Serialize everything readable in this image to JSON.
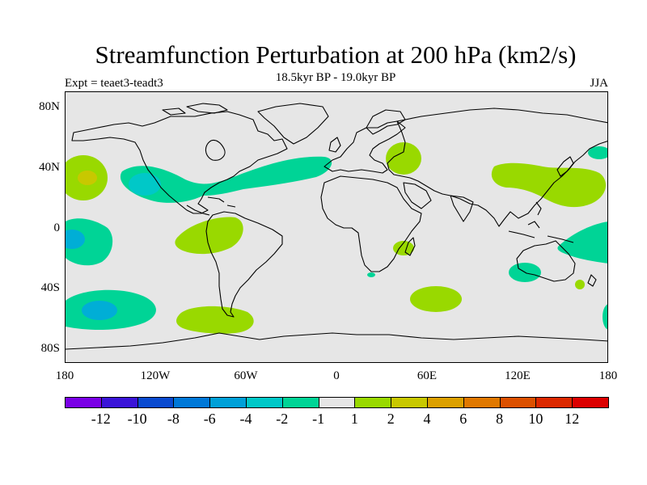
{
  "title": "Streamfunction Perturbation at 200 hPa (km2/s)",
  "subtitle": "18.5kyr BP - 19.0kyr BP",
  "experiment": "Expt = teaet3-teadt3",
  "season": "JJA",
  "colors": {
    "land_bg": "#e6e6e6",
    "coast": "#000000",
    "pos_1_2": "#99d900",
    "pos_2_4": "#c8c800",
    "neg_1_2": "#00d496",
    "neg_2_4": "#00c8c8",
    "neg_4_6": "#00aed6"
  },
  "lat_labels": [
    "80N",
    "40N",
    "0",
    "40S",
    "80S"
  ],
  "lon_labels": [
    "180",
    "120W",
    "60W",
    "0",
    "60E",
    "120E",
    "180"
  ],
  "colorbar": {
    "colors": [
      "#7a00e6",
      "#3a14d8",
      "#0a4ad0",
      "#0078d8",
      "#00a0d8",
      "#00c8c8",
      "#00d496",
      "#e6e6e6",
      "#99d900",
      "#c8c800",
      "#dca000",
      "#e07800",
      "#dc5000",
      "#dc2800",
      "#dc0000"
    ],
    "labels": [
      "-12",
      "-10",
      "-8",
      "-6",
      "-4",
      "-2",
      "-1",
      "1",
      "2",
      "4",
      "6",
      "8",
      "10",
      "12"
    ]
  },
  "anomalies": [
    {
      "name": "n-pacific-positive",
      "level": "pos_1_2",
      "lon": -177,
      "lat": 32
    },
    {
      "name": "n-pacific-positive-core",
      "level": "pos_2_4",
      "lon": -175,
      "lat": 33
    },
    {
      "name": "ne-pacific-america-atlantic-negative",
      "level": "neg_1_2",
      "lon": -80,
      "lat": 30
    },
    {
      "name": "ne-pacific-negative-core",
      "level": "neg_2_4",
      "lon": -127,
      "lat": 30
    },
    {
      "name": "trop-pacific-west-negative",
      "level": "neg_1_2",
      "lon": -175,
      "lat": -5
    },
    {
      "name": "trop-pacific-west-negative-core",
      "level": "neg_4_6",
      "lon": -175,
      "lat": -7
    },
    {
      "name": "s-america-positive",
      "level": "pos_1_2",
      "lon": -72,
      "lat": -8
    },
    {
      "name": "s-pacific-negative",
      "level": "neg_1_2",
      "lon": -145,
      "lat": -53
    },
    {
      "name": "s-pacific-negative-core",
      "level": "neg_4_6",
      "lon": -150,
      "lat": -55
    },
    {
      "name": "s-atlantic-positive",
      "level": "pos_1_2",
      "lon": -65,
      "lat": -60
    },
    {
      "name": "caspian-positive",
      "level": "pos_1_2",
      "lon": 47,
      "lat": 45
    },
    {
      "name": "e-asia-positive",
      "level": "pos_1_2",
      "lon": 140,
      "lat": 35
    },
    {
      "name": "madagascar-positive",
      "level": "pos_1_2",
      "lon": 48,
      "lat": -18
    },
    {
      "name": "s-indian-positive",
      "level": "pos_1_2",
      "lon": 67,
      "lat": -47
    },
    {
      "name": "w-pacific-negative",
      "level": "neg_1_2",
      "lon": 175,
      "lat": -15
    },
    {
      "name": "australia-negative",
      "level": "neg_1_2",
      "lon": 124,
      "lat": -30
    },
    {
      "name": "nw-pacific-negative",
      "level": "neg_1_2",
      "lon": 172,
      "lat": 52
    }
  ]
}
